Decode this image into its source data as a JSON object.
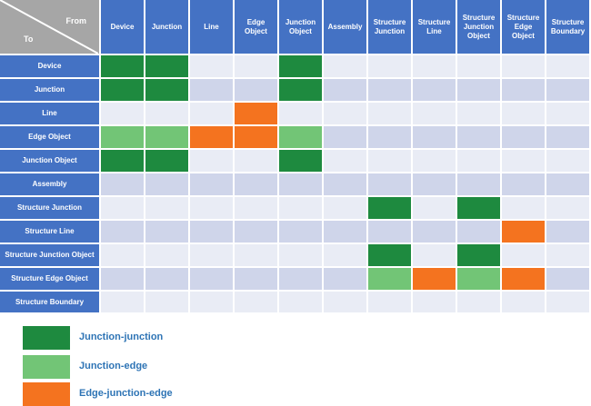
{
  "corner": {
    "from_label": "From",
    "to_label": "To"
  },
  "columns": [
    "Device",
    "Junction",
    "Line",
    "Edge Object",
    "Junction Object",
    "Assembly",
    "Structure Junction",
    "Structure Line",
    "Structure Junction Object",
    "Structure Edge Object",
    "Structure Boundary"
  ],
  "rows": [
    "Device",
    "Junction",
    "Line",
    "Edge Object",
    "Junction Object",
    "Assembly",
    "Structure Junction",
    "Structure Line",
    "Structure Junction Object",
    "Structure Edge Object",
    "Structure Boundary"
  ],
  "matrix": [
    [
      "jj",
      "jj",
      "",
      "",
      "jj",
      "",
      "",
      "",
      "",
      "",
      ""
    ],
    [
      "jj",
      "jj",
      "",
      "",
      "jj",
      "",
      "",
      "",
      "",
      "",
      ""
    ],
    [
      "",
      "",
      "",
      "eje",
      "",
      "",
      "",
      "",
      "",
      "",
      ""
    ],
    [
      "je",
      "je",
      "eje",
      "eje",
      "je",
      "",
      "",
      "",
      "",
      "",
      ""
    ],
    [
      "jj",
      "jj",
      "",
      "",
      "jj",
      "",
      "",
      "",
      "",
      "",
      ""
    ],
    [
      "",
      "",
      "",
      "",
      "",
      "",
      "",
      "",
      "",
      "",
      ""
    ],
    [
      "",
      "",
      "",
      "",
      "",
      "",
      "jj",
      "",
      "jj",
      "",
      ""
    ],
    [
      "",
      "",
      "",
      "",
      "",
      "",
      "",
      "",
      "",
      "eje",
      ""
    ],
    [
      "",
      "",
      "",
      "",
      "",
      "",
      "jj",
      "",
      "jj",
      "",
      ""
    ],
    [
      "",
      "",
      "",
      "",
      "",
      "",
      "je",
      "eje",
      "je",
      "eje",
      ""
    ],
    [
      "",
      "",
      "",
      "",
      "",
      "",
      "",
      "",
      "",
      "",
      ""
    ]
  ],
  "legend": [
    {
      "key": "jj",
      "label": "Junction-junction",
      "color": "#1e8a3f"
    },
    {
      "key": "je",
      "label": "Junction-edge",
      "color": "#72c576"
    },
    {
      "key": "eje",
      "label": "Edge-junction-edge",
      "color": "#f4731f"
    }
  ],
  "colors": {
    "header_bg": "#4472c4",
    "corner_bg": "#a6a6a6",
    "empty_light": "#e9ecf5",
    "empty_dark": "#cfd5ea",
    "legend_text": "#2e74b5"
  }
}
